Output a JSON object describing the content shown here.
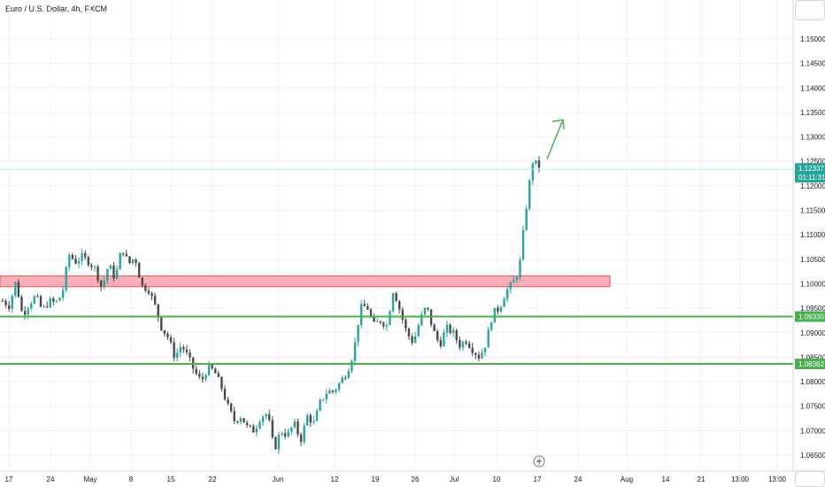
{
  "header": {
    "symbol_title": "Euro / U.S. Dollar, 4h, FXCM"
  },
  "price_labels": {
    "last_price": "1.12337",
    "countdown": "01:11:31",
    "support_1": "1.09330",
    "support_2": "1.08362"
  },
  "colors": {
    "up": "#26a69a",
    "down": "#4a4a4a",
    "support_line": "#4caf50",
    "resistance_zone": "#f7a0ad",
    "resistance_border": "#ef5350",
    "arrow": "#4caf50",
    "last_price_bg": "#26a69a"
  },
  "chart_data": {
    "type": "candlestick",
    "y_ticks": [
      "1.15000",
      "1.14500",
      "1.14000",
      "1.13500",
      "1.13000",
      "1.12500",
      "1.12000",
      "1.11500",
      "1.11000",
      "1.10500",
      "1.10000",
      "1.09500",
      "1.09000",
      "1.08500",
      "1.08000",
      "1.07500",
      "1.07000",
      "1.06500"
    ],
    "x_ticks": [
      "17",
      "24",
      "May",
      "8",
      "15",
      "22",
      "Jun",
      "12",
      "19",
      "26",
      "Jul",
      "10",
      "17",
      "24",
      "Aug",
      "14",
      "21",
      "13:00",
      "13:00"
    ],
    "ylim": [
      1.063,
      1.1545
    ],
    "resistance_zone": [
      1.0994,
      1.1016
    ],
    "support_levels": [
      1.0933,
      1.08362
    ],
    "last_price": 1.12337,
    "projection_arrow": {
      "from": 1.1255,
      "to": 1.1335
    },
    "anchors": [
      [
        0,
        1.0965
      ],
      [
        1,
        1.0955
      ],
      [
        2,
        1.1005
      ],
      [
        3,
        1.0935
      ],
      [
        4,
        1.096
      ],
      [
        5,
        1.0975
      ],
      [
        6,
        1.0945
      ],
      [
        7,
        1.0965
      ],
      [
        8,
        1.096
      ],
      [
        9,
        1.098
      ],
      [
        10,
        1.106
      ],
      [
        11,
        1.1045
      ],
      [
        12,
        1.1055
      ],
      [
        13,
        1.1045
      ],
      [
        14,
        1.103
      ],
      [
        15,
        1.099
      ],
      [
        16,
        1.104
      ],
      [
        17,
        1.101
      ],
      [
        18,
        1.1075
      ],
      [
        19,
        1.104
      ],
      [
        20,
        1.1055
      ],
      [
        21,
        1.0995
      ],
      [
        22,
        1.099
      ],
      [
        23,
        1.0955
      ],
      [
        24,
        1.091
      ],
      [
        25,
        1.089
      ],
      [
        26,
        1.085
      ],
      [
        27,
        1.0875
      ],
      [
        28,
        1.085
      ],
      [
        29,
        1.082
      ],
      [
        30,
        1.08
      ],
      [
        31,
        1.083
      ],
      [
        32,
        1.082
      ],
      [
        33,
        1.079
      ],
      [
        34,
        1.075
      ],
      [
        35,
        1.072
      ],
      [
        36,
        1.073
      ],
      [
        37,
        1.0705
      ],
      [
        38,
        1.07
      ],
      [
        39,
        1.073
      ],
      [
        40,
        1.0735
      ],
      [
        41,
        1.066
      ],
      [
        42,
        1.07
      ],
      [
        43,
        1.069
      ],
      [
        44,
        1.0715
      ],
      [
        45,
        1.068
      ],
      [
        46,
        1.073
      ],
      [
        47,
        1.0715
      ],
      [
        48,
        1.076
      ],
      [
        49,
        1.078
      ],
      [
        50,
        1.078
      ],
      [
        51,
        1.08
      ],
      [
        52,
        1.082
      ],
      [
        53,
        1.086
      ],
      [
        54,
        1.095
      ],
      [
        55,
        1.0955
      ],
      [
        56,
        1.0915
      ],
      [
        57,
        1.0925
      ],
      [
        58,
        1.0915
      ],
      [
        59,
        1.099
      ],
      [
        60,
        1.0945
      ],
      [
        61,
        1.09
      ],
      [
        62,
        1.088
      ],
      [
        63,
        1.0925
      ],
      [
        64,
        1.0955
      ],
      [
        65,
        1.0905
      ],
      [
        66,
        1.0875
      ],
      [
        67,
        1.091
      ],
      [
        68,
        1.09
      ],
      [
        69,
        1.0875
      ],
      [
        70,
        1.0885
      ],
      [
        71,
        1.0865
      ],
      [
        72,
        1.085
      ],
      [
        73,
        1.088
      ],
      [
        74,
        1.094
      ],
      [
        75,
        1.095
      ],
      [
        76,
        1.0985
      ],
      [
        77,
        1.1
      ],
      [
        78,
        1.103
      ],
      [
        79,
        1.115
      ],
      [
        80,
        1.125
      ],
      [
        81,
        1.124
      ]
    ],
    "x_range": [
      0,
      81
    ],
    "candle_count": 170
  }
}
